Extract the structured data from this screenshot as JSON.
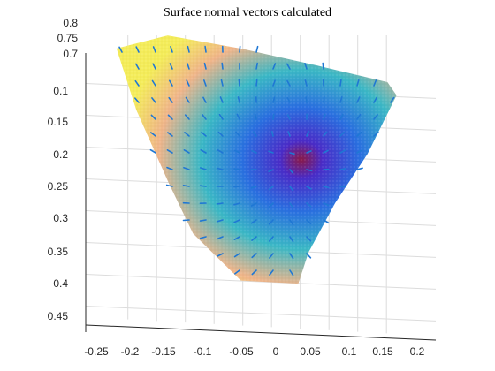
{
  "chart_data": {
    "type": "scatter",
    "subtype": "3d-point-cloud-with-normal-vectors",
    "title": "Surface normal vectors calculated",
    "xlabel": "",
    "ylabel": "",
    "zlabel": "",
    "x_ticks": [
      "-0.25",
      "-0.2",
      "-0.15",
      "-0.1",
      "-0.05",
      "0",
      "0.05",
      "0.1",
      "0.15",
      "0.2"
    ],
    "y_ticks": [
      "0.1",
      "0.15",
      "0.2",
      "0.25",
      "0.3",
      "0.35",
      "0.4",
      "0.45"
    ],
    "z_ticks": [
      "0.8",
      "0.75",
      "0.7"
    ],
    "xlim": [
      -0.27,
      0.21
    ],
    "ylim": [
      0.04,
      0.47
    ],
    "zlim": [
      0.69,
      0.8
    ],
    "grid": true,
    "colormap": "parula",
    "colors": {
      "low": "#2a43d6",
      "mid": "#38b7c4",
      "high": "#f4ec5a",
      "deep": "#8a1a4a",
      "vector": "#1f77d4"
    },
    "surface_outline": [
      [
        -0.27,
        0.045
      ],
      [
        -0.18,
        0.02
      ],
      [
        -0.05,
        0.035
      ],
      [
        0.08,
        0.055
      ],
      [
        0.2,
        0.075
      ],
      [
        0.215,
        0.095
      ],
      [
        0.16,
        0.19
      ],
      [
        0.1,
        0.27
      ],
      [
        0.05,
        0.35
      ],
      [
        0.03,
        0.4
      ],
      [
        -0.07,
        0.4
      ],
      [
        -0.15,
        0.33
      ],
      [
        -0.19,
        0.25
      ],
      [
        -0.24,
        0.14
      ]
    ],
    "deepest_point": {
      "x": 0.02,
      "y": 0.19
    },
    "normal_vectors_grid_spacing": 0.03
  }
}
